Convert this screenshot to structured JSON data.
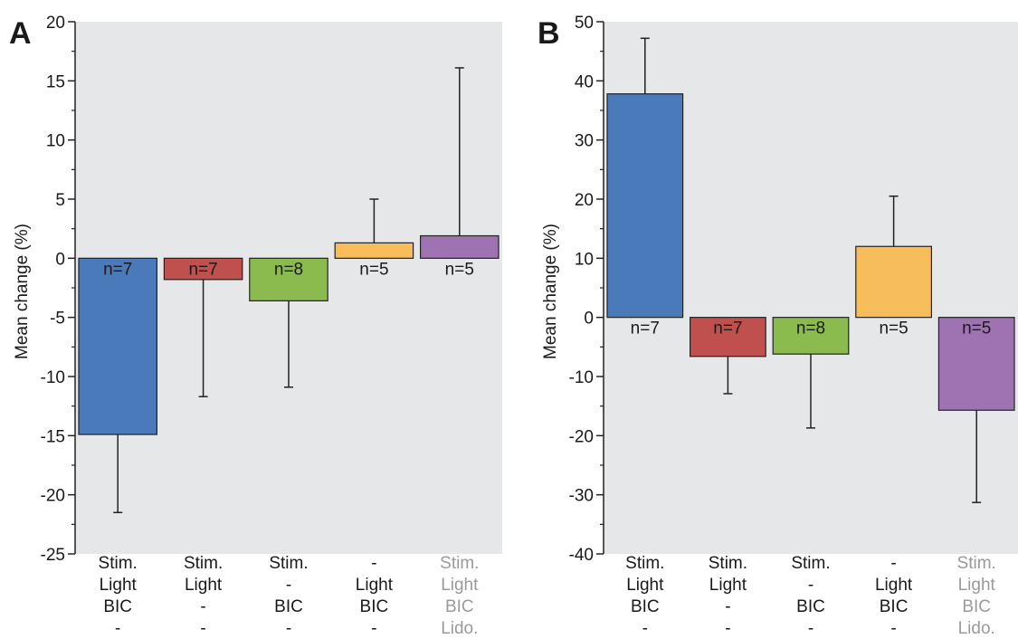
{
  "colors": {
    "plot_background": "#e6e7e9",
    "blue": "#4a7aba",
    "red": "#c0504d",
    "green": "#8bbb4e",
    "yellow": "#f8bd5b",
    "purple": "#9f72b1",
    "bar_edge": "#222222",
    "label_dark": "#1a1a1a",
    "label_gray": "#9a9a9a"
  },
  "condition_rows": [
    [
      "Stim.",
      "Light",
      "BIC",
      "-"
    ],
    [
      "Stim.",
      "Light",
      "-",
      "-"
    ],
    [
      "Stim.",
      "-",
      "BIC",
      "-"
    ],
    [
      "-",
      "Light",
      "BIC",
      "-"
    ],
    [
      "Stim.",
      "Light",
      "BIC",
      "Lido."
    ]
  ],
  "condition_label_colors": [
    "label_dark",
    "label_dark",
    "label_dark",
    "label_dark",
    "label_gray"
  ],
  "chart_data": [
    {
      "panel": "A",
      "type": "bar",
      "ylabel": "Mean change (%)",
      "ylim": [
        -25,
        20
      ],
      "yticks": [
        -25,
        -20,
        -15,
        -10,
        -5,
        0,
        5,
        10,
        15,
        20
      ],
      "ytick_labels": [
        "-25",
        "-20",
        "-15",
        "-10",
        "-5",
        "0",
        "5",
        "10",
        "15",
        "20"
      ],
      "grid": false,
      "legend": "none",
      "bars": [
        {
          "value": -14.9,
          "error": 6.6,
          "n_label": "n=7",
          "color": "blue"
        },
        {
          "value": -1.8,
          "error": 9.9,
          "n_label": "n=7",
          "color": "red"
        },
        {
          "value": -3.6,
          "error": 7.3,
          "n_label": "n=8",
          "color": "green"
        },
        {
          "value": 1.3,
          "error": 3.7,
          "n_label": "n=5",
          "color": "yellow"
        },
        {
          "value": 1.9,
          "error": 14.2,
          "n_label": "n=5",
          "color": "purple"
        }
      ]
    },
    {
      "panel": "B",
      "type": "bar",
      "ylabel": "Mean change (%)",
      "ylim": [
        -40,
        50
      ],
      "yticks": [
        -40,
        -30,
        -20,
        -10,
        0,
        10,
        20,
        30,
        40,
        50
      ],
      "ytick_labels": [
        "-40",
        "-30",
        "-20",
        "-10",
        "0",
        "10",
        "20",
        "30",
        "40",
        "50"
      ],
      "grid": false,
      "legend": "none",
      "bars": [
        {
          "value": 37.8,
          "error": 9.4,
          "n_label": "n=7",
          "color": "blue"
        },
        {
          "value": -6.6,
          "error": 6.3,
          "n_label": "n=7",
          "color": "red"
        },
        {
          "value": -6.2,
          "error": 12.5,
          "n_label": "n=8",
          "color": "green"
        },
        {
          "value": 12.0,
          "error": 8.5,
          "n_label": "n=5",
          "color": "yellow"
        },
        {
          "value": -15.7,
          "error": 15.6,
          "n_label": "n=5",
          "color": "purple"
        }
      ]
    }
  ]
}
